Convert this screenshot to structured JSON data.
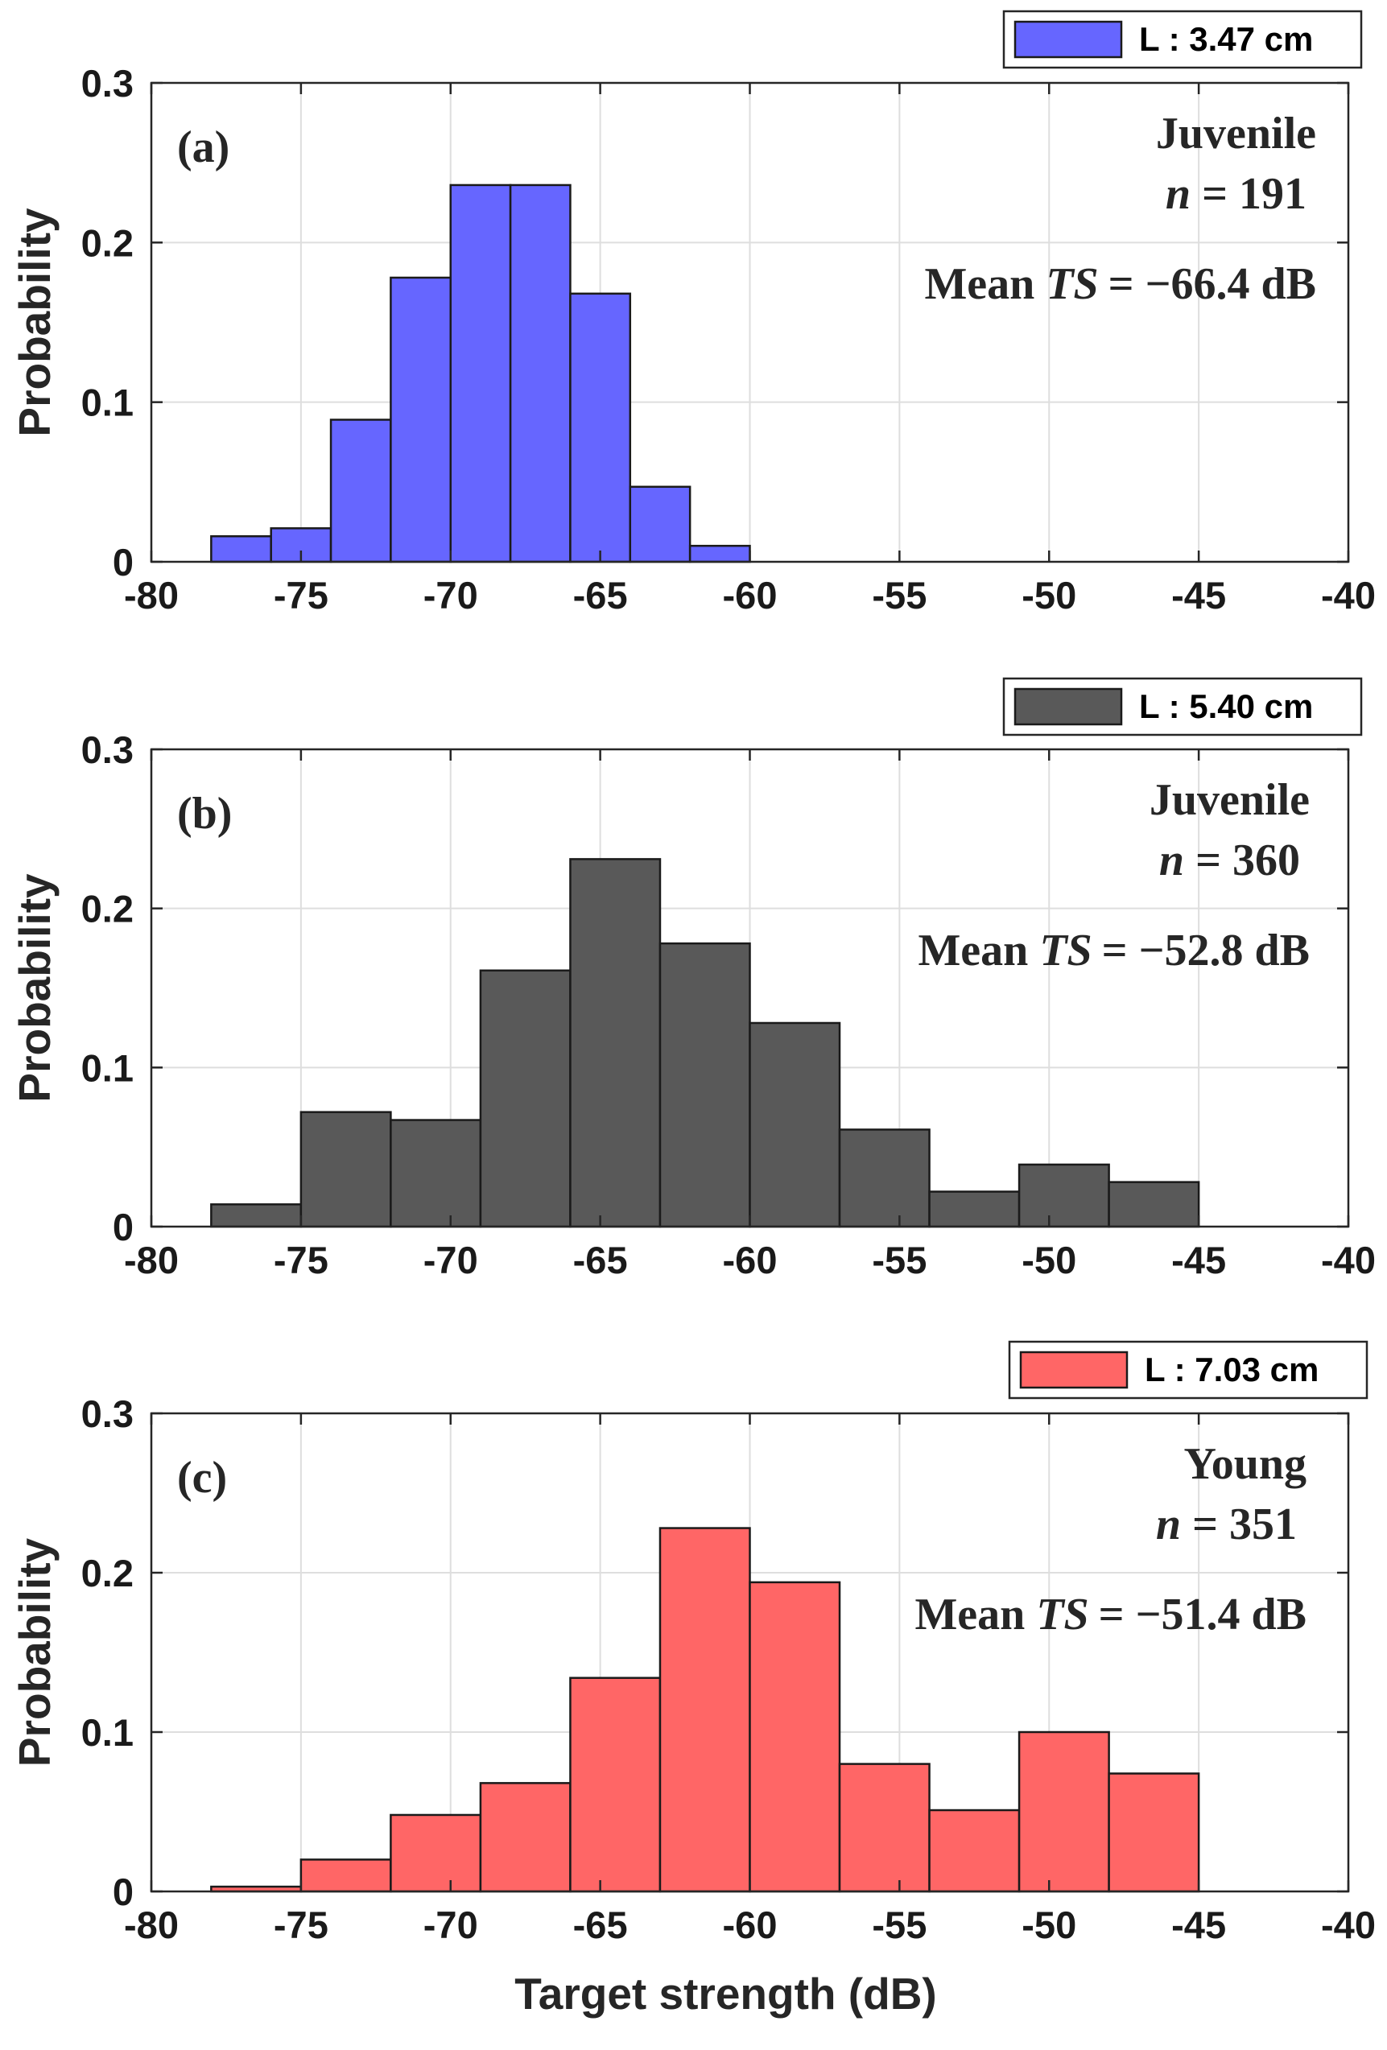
{
  "chart_data": [
    {
      "type": "bar",
      "panel_label": "(a)",
      "legend": "L : 3.47 cm",
      "color": "#6666ff",
      "group": "Juvenile",
      "n_label": "n",
      "n_value": "= 191",
      "mean_prefix": "Mean",
      "mean_var": "TS",
      "mean_value": "= −66.4 dB",
      "ylabel": "Probability",
      "xlabel": "",
      "xlim": [
        -80,
        -40
      ],
      "ylim": [
        0,
        0.3
      ],
      "xticks": [
        "-80",
        "-75",
        "-70",
        "-65",
        "-60",
        "-55",
        "-50",
        "-45",
        "-40"
      ],
      "yticks": [
        "0",
        "0.1",
        "0.2",
        "0.3"
      ],
      "bins": [
        {
          "x0": -78,
          "x1": -76,
          "value": 0.016
        },
        {
          "x0": -76,
          "x1": -74,
          "value": 0.021
        },
        {
          "x0": -74,
          "x1": -72,
          "value": 0.089
        },
        {
          "x0": -72,
          "x1": -70,
          "value": 0.178
        },
        {
          "x0": -70,
          "x1": -68,
          "value": 0.236
        },
        {
          "x0": -68,
          "x1": -66,
          "value": 0.236
        },
        {
          "x0": -66,
          "x1": -64,
          "value": 0.168
        },
        {
          "x0": -64,
          "x1": -62,
          "value": 0.047
        },
        {
          "x0": -62,
          "x1": -60,
          "value": 0.01
        }
      ]
    },
    {
      "type": "bar",
      "panel_label": "(b)",
      "legend": "L : 5.40 cm",
      "color": "#595959",
      "group": "Juvenile",
      "n_label": "n",
      "n_value": "= 360",
      "mean_prefix": "Mean",
      "mean_var": "TS",
      "mean_value": "= −52.8 dB",
      "ylabel": "Probability",
      "xlabel": "",
      "xlim": [
        -80,
        -40
      ],
      "ylim": [
        0,
        0.3
      ],
      "xticks": [
        "-80",
        "-75",
        "-70",
        "-65",
        "-60",
        "-55",
        "-50",
        "-45",
        "-40"
      ],
      "yticks": [
        "0",
        "0.1",
        "0.2",
        "0.3"
      ],
      "bins": [
        {
          "x0": -78,
          "x1": -75,
          "value": 0.014
        },
        {
          "x0": -75,
          "x1": -72,
          "value": 0.072
        },
        {
          "x0": -72,
          "x1": -69,
          "value": 0.067
        },
        {
          "x0": -69,
          "x1": -66,
          "value": 0.161
        },
        {
          "x0": -66,
          "x1": -63,
          "value": 0.231
        },
        {
          "x0": -63,
          "x1": -60,
          "value": 0.178
        },
        {
          "x0": -60,
          "x1": -57,
          "value": 0.128
        },
        {
          "x0": -57,
          "x1": -54,
          "value": 0.061
        },
        {
          "x0": -54,
          "x1": -51,
          "value": 0.022
        },
        {
          "x0": -51,
          "x1": -48,
          "value": 0.039
        },
        {
          "x0": -48,
          "x1": -45,
          "value": 0.028
        }
      ]
    },
    {
      "type": "bar",
      "panel_label": "(c)",
      "legend": "L : 7.03 cm",
      "color": "#ff6666",
      "group": "Young",
      "n_label": "n",
      "n_value": "= 351",
      "mean_prefix": "Mean",
      "mean_var": "TS",
      "mean_value": "= −51.4 dB",
      "ylabel": "Probability",
      "xlabel": "Target strength (dB)",
      "xlim": [
        -80,
        -40
      ],
      "ylim": [
        0,
        0.3
      ],
      "xticks": [
        "-80",
        "-75",
        "-70",
        "-65",
        "-60",
        "-55",
        "-50",
        "-45",
        "-40"
      ],
      "yticks": [
        "0",
        "0.1",
        "0.2",
        "0.3"
      ],
      "bins": [
        {
          "x0": -78,
          "x1": -75,
          "value": 0.003
        },
        {
          "x0": -75,
          "x1": -72,
          "value": 0.02
        },
        {
          "x0": -72,
          "x1": -69,
          "value": 0.048
        },
        {
          "x0": -69,
          "x1": -66,
          "value": 0.068
        },
        {
          "x0": -66,
          "x1": -63,
          "value": 0.134
        },
        {
          "x0": -63,
          "x1": -60,
          "value": 0.228
        },
        {
          "x0": -60,
          "x1": -57,
          "value": 0.194
        },
        {
          "x0": -57,
          "x1": -54,
          "value": 0.08
        },
        {
          "x0": -54,
          "x1": -51,
          "value": 0.051
        },
        {
          "x0": -51,
          "x1": -48,
          "value": 0.1
        },
        {
          "x0": -48,
          "x1": -45,
          "value": 0.074
        }
      ]
    }
  ]
}
